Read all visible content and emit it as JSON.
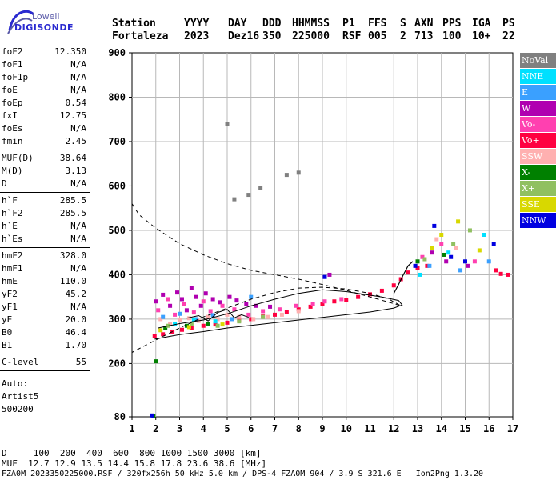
{
  "logo": {
    "line1": "Lowell",
    "line2": "DIGISONDE"
  },
  "header": {
    "labels": [
      "Station",
      "YYYY",
      "DAY",
      "DDD",
      "HHMMSS",
      "P1",
      "FFS",
      "S",
      "AXN",
      "PPS",
      "IGA",
      "PS"
    ],
    "values": [
      "Fortaleza",
      "2023",
      "Dez16",
      "350",
      "225000",
      "RSF",
      "005",
      "2",
      "713",
      "100",
      "10+",
      "22"
    ]
  },
  "params": {
    "group1": [
      {
        "label": "foF2",
        "value": "12.350"
      },
      {
        "label": "foF1",
        "value": "N/A"
      },
      {
        "label": "foF1p",
        "value": "N/A"
      },
      {
        "label": "foE",
        "value": "N/A"
      },
      {
        "label": "foEp",
        "value": "0.54"
      },
      {
        "label": "fxI",
        "value": "12.75"
      },
      {
        "label": "foEs",
        "value": "N/A"
      },
      {
        "label": "fmin",
        "value": "2.45"
      }
    ],
    "group2": [
      {
        "label": "MUF(D)",
        "value": "38.64"
      },
      {
        "label": "M(D)",
        "value": "3.13"
      },
      {
        "label": "D",
        "value": "N/A"
      }
    ],
    "group3": [
      {
        "label": "h`F",
        "value": "285.5"
      },
      {
        "label": "h`F2",
        "value": "285.5"
      },
      {
        "label": "h`E",
        "value": "N/A"
      },
      {
        "label": "h`Es",
        "value": "N/A"
      }
    ],
    "group4": [
      {
        "label": "hmF2",
        "value": "328.0"
      },
      {
        "label": "hmF1",
        "value": "N/A"
      },
      {
        "label": "hmE",
        "value": "110.0"
      },
      {
        "label": "yF2",
        "value": "45.2"
      },
      {
        "label": "yF1",
        "value": "N/A"
      },
      {
        "label": "yE",
        "value": "20.0"
      },
      {
        "label": "B0",
        "value": "46.4"
      },
      {
        "label": "B1",
        "value": "1.70"
      }
    ],
    "group5": [
      {
        "label": "C-level",
        "value": "55"
      }
    ],
    "auto": [
      "Auto:",
      "Artist5",
      "500200"
    ]
  },
  "legend": [
    {
      "label": "NoVal",
      "color": "#808080"
    },
    {
      "label": "NNE",
      "color": "#00e0ff"
    },
    {
      "label": "E",
      "color": "#3aa0ff"
    },
    {
      "label": "W",
      "color": "#b000b0"
    },
    {
      "label": "Vo-",
      "color": "#ff40b0"
    },
    {
      "label": "Vo+",
      "color": "#ff0040"
    },
    {
      "label": "SSW",
      "color": "#ffb0b0"
    },
    {
      "label": "X-",
      "color": "#008000"
    },
    {
      "label": "X+",
      "color": "#90c060"
    },
    {
      "label": "SSE",
      "color": "#d8d800"
    },
    {
      "label": "NNW",
      "color": "#0000e0"
    }
  ],
  "chart_data": {
    "type": "scatter",
    "xlim": [
      1,
      17
    ],
    "ylim": [
      80,
      900
    ],
    "xticks": [
      1,
      2,
      3,
      4,
      5,
      6,
      7,
      8,
      9,
      10,
      11,
      12,
      13,
      14,
      15,
      16,
      17
    ],
    "yticks": [
      80,
      200,
      300,
      400,
      500,
      600,
      700,
      800,
      900
    ],
    "grid": true,
    "series": [
      {
        "name": "Vo+",
        "color": "#ff0040",
        "points": [
          [
            1.95,
            262
          ],
          [
            2.3,
            266
          ],
          [
            2.7,
            272
          ],
          [
            3.1,
            276
          ],
          [
            3.5,
            280
          ],
          [
            4.0,
            285
          ],
          [
            4.5,
            288
          ],
          [
            5.0,
            292
          ],
          [
            5.5,
            297
          ],
          [
            6.0,
            300
          ],
          [
            6.5,
            306
          ],
          [
            7.0,
            310
          ],
          [
            7.5,
            316
          ],
          [
            8.0,
            322
          ],
          [
            8.5,
            328
          ],
          [
            9.0,
            334
          ],
          [
            9.5,
            340
          ],
          [
            10.0,
            344
          ],
          [
            10.5,
            350
          ],
          [
            11.0,
            356
          ],
          [
            11.5,
            364
          ],
          [
            12.0,
            376
          ],
          [
            12.3,
            390
          ],
          [
            12.6,
            405
          ],
          [
            13.0,
            415
          ],
          [
            13.4,
            420
          ],
          [
            16.3,
            410
          ],
          [
            16.5,
            402
          ],
          [
            16.8,
            400
          ]
        ]
      },
      {
        "name": "W",
        "color": "#b000b0",
        "points": [
          [
            2.0,
            340
          ],
          [
            2.3,
            355
          ],
          [
            2.6,
            330
          ],
          [
            2.9,
            360
          ],
          [
            3.1,
            345
          ],
          [
            3.3,
            320
          ],
          [
            3.5,
            370
          ],
          [
            3.7,
            350
          ],
          [
            3.9,
            330
          ],
          [
            4.1,
            358
          ],
          [
            4.4,
            345
          ],
          [
            4.7,
            338
          ],
          [
            5.1,
            350
          ],
          [
            5.4,
            342
          ],
          [
            5.8,
            335
          ],
          [
            6.2,
            330
          ],
          [
            6.8,
            328
          ],
          [
            9.3,
            400
          ],
          [
            13.6,
            450
          ],
          [
            14.2,
            430
          ],
          [
            15.1,
            420
          ]
        ]
      },
      {
        "name": "Vo-",
        "color": "#ff40b0",
        "points": [
          [
            2.1,
            320
          ],
          [
            2.5,
            345
          ],
          [
            2.8,
            310
          ],
          [
            3.2,
            335
          ],
          [
            3.6,
            315
          ],
          [
            4.0,
            340
          ],
          [
            4.3,
            318
          ],
          [
            4.8,
            330
          ],
          [
            5.3,
            322
          ],
          [
            5.9,
            310
          ],
          [
            6.5,
            318
          ],
          [
            7.2,
            322
          ],
          [
            7.9,
            330
          ],
          [
            8.6,
            335
          ],
          [
            9.1,
            340
          ],
          [
            9.8,
            345
          ],
          [
            13.2,
            440
          ],
          [
            14.0,
            470
          ],
          [
            15.4,
            430
          ]
        ]
      },
      {
        "name": "SSW",
        "color": "#ffb0b0",
        "points": [
          [
            2.2,
            300
          ],
          [
            2.6,
            290
          ],
          [
            3.0,
            298
          ],
          [
            3.4,
            302
          ],
          [
            3.8,
            296
          ],
          [
            4.2,
            305
          ],
          [
            4.6,
            300
          ],
          [
            5.0,
            310
          ],
          [
            5.5,
            305
          ],
          [
            6.1,
            300
          ],
          [
            6.7,
            305
          ],
          [
            7.3,
            310
          ],
          [
            8.0,
            318
          ],
          [
            13.8,
            480
          ],
          [
            14.6,
            460
          ]
        ]
      },
      {
        "name": "E",
        "color": "#3aa0ff",
        "points": [
          [
            2.3,
            305
          ],
          [
            3.0,
            312
          ],
          [
            3.7,
            300
          ],
          [
            4.4,
            309
          ],
          [
            5.2,
            300
          ],
          [
            6.0,
            350
          ],
          [
            13.5,
            420
          ],
          [
            14.8,
            410
          ],
          [
            16.0,
            430
          ]
        ]
      },
      {
        "name": "NNE",
        "color": "#00e0ff",
        "points": [
          [
            2.8,
            290
          ],
          [
            3.6,
            298
          ],
          [
            4.5,
            295
          ],
          [
            13.1,
            400
          ],
          [
            14.3,
            450
          ],
          [
            15.8,
            490
          ]
        ]
      },
      {
        "name": "X-",
        "color": "#008000",
        "points": [
          [
            1.9,
            81
          ],
          [
            2.0,
            205
          ],
          [
            2.4,
            280
          ],
          [
            3.3,
            285
          ],
          [
            4.2,
            290
          ],
          [
            13.0,
            430
          ],
          [
            14.1,
            445
          ]
        ]
      },
      {
        "name": "X+",
        "color": "#90c060",
        "points": [
          [
            2.5,
            285
          ],
          [
            3.5,
            290
          ],
          [
            4.6,
            285
          ],
          [
            5.5,
            295
          ],
          [
            6.5,
            305
          ],
          [
            13.3,
            435
          ],
          [
            14.5,
            470
          ],
          [
            15.2,
            500
          ]
        ]
      },
      {
        "name": "SSE",
        "color": "#d8d800",
        "points": [
          [
            2.2,
            275
          ],
          [
            3.4,
            282
          ],
          [
            4.8,
            288
          ],
          [
            13.6,
            460
          ],
          [
            14.0,
            490
          ],
          [
            14.7,
            520
          ],
          [
            15.6,
            455
          ]
        ]
      },
      {
        "name": "NNW",
        "color": "#0000e0",
        "points": [
          [
            1.85,
            83
          ],
          [
            9.1,
            395
          ],
          [
            12.9,
            420
          ],
          [
            13.7,
            510
          ],
          [
            14.4,
            440
          ],
          [
            15.0,
            430
          ],
          [
            16.2,
            470
          ]
        ]
      },
      {
        "name": "NoVal",
        "color": "#808080",
        "points": [
          [
            5.3,
            570
          ],
          [
            5.9,
            580
          ],
          [
            6.4,
            595
          ],
          [
            7.5,
            625
          ],
          [
            8.0,
            630
          ],
          [
            5.0,
            740
          ]
        ]
      }
    ],
    "profile_dashed": [
      [
        1.0,
        560
      ],
      [
        1.3,
        535
      ],
      [
        2,
        505
      ],
      [
        3,
        470
      ],
      [
        4,
        445
      ],
      [
        5,
        425
      ],
      [
        6,
        410
      ],
      [
        7,
        400
      ],
      [
        8,
        390
      ],
      [
        9,
        378
      ],
      [
        10,
        365
      ],
      [
        11,
        350
      ],
      [
        11.8,
        338
      ],
      [
        12.3,
        330
      ],
      [
        11.8,
        345
      ],
      [
        11,
        358
      ],
      [
        10,
        368
      ],
      [
        9,
        372
      ],
      [
        8,
        370
      ],
      [
        7,
        360
      ],
      [
        6,
        345
      ],
      [
        5,
        325
      ],
      [
        4,
        305
      ],
      [
        3,
        280
      ],
      [
        2,
        253
      ],
      [
        1.0,
        225
      ]
    ],
    "profile_solid": [
      [
        1.95,
        255
      ],
      [
        3,
        265
      ],
      [
        4,
        272
      ],
      [
        5,
        280
      ],
      [
        6,
        286
      ],
      [
        7,
        292
      ],
      [
        8,
        298
      ],
      [
        9,
        304
      ],
      [
        10,
        310
      ],
      [
        11,
        316
      ],
      [
        12,
        325
      ],
      [
        12.35,
        332
      ],
      [
        12.2,
        342
      ],
      [
        11.5,
        350
      ],
      [
        10.5,
        358
      ],
      [
        10,
        362
      ],
      [
        9,
        366
      ],
      [
        8,
        358
      ],
      [
        7,
        345
      ],
      [
        6,
        330
      ],
      [
        5,
        312
      ],
      [
        4,
        298
      ],
      [
        3,
        290
      ],
      [
        2.1,
        280
      ]
    ],
    "trace_curve": [
      [
        3.3,
        302
      ],
      [
        3.8,
        308
      ],
      [
        4.2,
        296
      ],
      [
        4.6,
        315
      ],
      [
        5.0,
        322
      ],
      [
        5.3,
        303
      ],
      [
        5.6,
        310
      ],
      [
        5.9,
        304
      ]
    ],
    "sharp_trace": [
      [
        12.0,
        358
      ],
      [
        12.2,
        378
      ],
      [
        12.4,
        400
      ],
      [
        12.6,
        420
      ],
      [
        12.8,
        430
      ]
    ]
  },
  "footer": {
    "line1": "D     100  200  400  600  800 1000 1500 3000 [km]",
    "line2": "MUF  12.7 12.9 13.5 14.4 15.8 17.8 23.6 38.6 [MHz]",
    "line3": "FZA0M_2023350225000.RSF / 320fx256h 50 kHz 5.0 km / DPS-4 FZA0M 904 / 3.9 S 321.6 E   Ion2Png 1.3.20"
  }
}
